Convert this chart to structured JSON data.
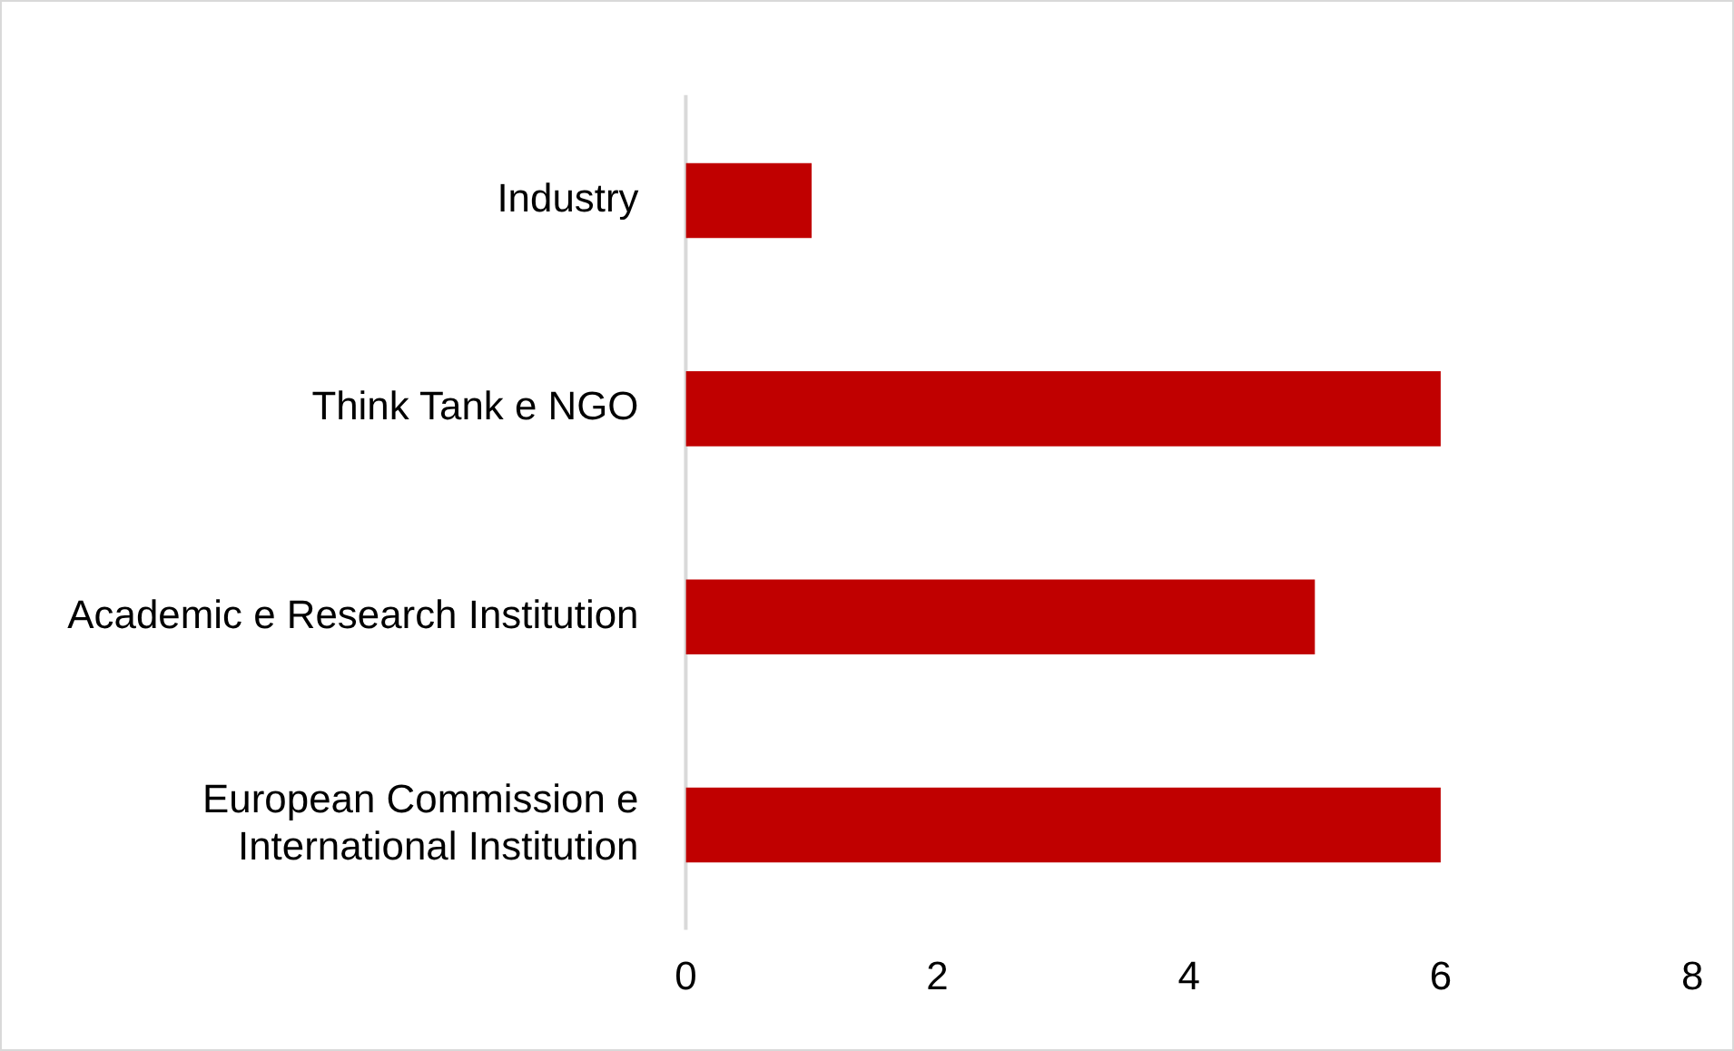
{
  "chart_data": {
    "type": "bar",
    "orientation": "horizontal",
    "categories": [
      "Industry",
      "Think Tank e NGO",
      "Academic e Research Institution",
      "European Commission e International Institution"
    ],
    "values": [
      1,
      6,
      5,
      6
    ],
    "color": "#c00000",
    "xlim": [
      0,
      8
    ],
    "xticks": [
      0,
      2,
      4,
      6,
      8
    ],
    "grid": false,
    "legend": false
  }
}
